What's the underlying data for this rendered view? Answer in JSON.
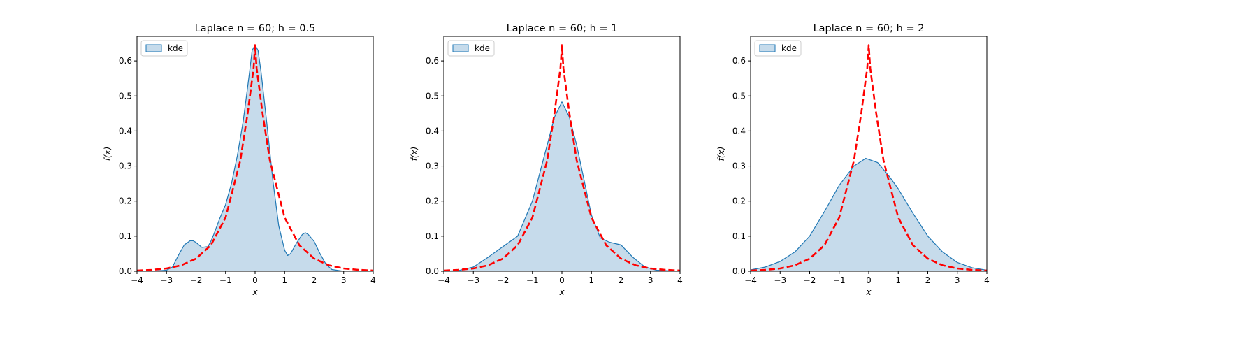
{
  "chart_data": [
    {
      "type": "area",
      "title": "Laplace n = 60; h = 0.5",
      "xlabel": "x",
      "ylabel": "f(x)",
      "xlim": [
        -4,
        4
      ],
      "ylim": [
        0,
        0.67
      ],
      "xticks": [
        -4,
        -3,
        -2,
        -1,
        0,
        1,
        2,
        3,
        4
      ],
      "yticks": [
        0.0,
        0.1,
        0.2,
        0.3,
        0.4,
        0.5,
        0.6
      ],
      "legend": {
        "position": "top-left",
        "entries": [
          "kde"
        ]
      },
      "grid": false,
      "series": [
        {
          "name": "kde",
          "style": "filled",
          "x": [
            -4,
            -3.5,
            -3,
            -2.8,
            -2.6,
            -2.4,
            -2.2,
            -2.1,
            -2.0,
            -1.8,
            -1.6,
            -1.5,
            -1.4,
            -1.2,
            -1.0,
            -0.8,
            -0.6,
            -0.4,
            -0.2,
            -0.1,
            0.0,
            0.1,
            0.2,
            0.4,
            0.6,
            0.8,
            1.0,
            1.1,
            1.2,
            1.4,
            1.6,
            1.7,
            1.8,
            2.0,
            2.2,
            2.4,
            2.6,
            3.0,
            4.0
          ],
          "y": [
            0.0,
            0.0,
            0.003,
            0.012,
            0.045,
            0.075,
            0.087,
            0.087,
            0.082,
            0.068,
            0.07,
            0.085,
            0.105,
            0.15,
            0.19,
            0.25,
            0.33,
            0.43,
            0.56,
            0.63,
            0.645,
            0.63,
            0.57,
            0.42,
            0.26,
            0.13,
            0.06,
            0.045,
            0.05,
            0.08,
            0.105,
            0.11,
            0.105,
            0.085,
            0.05,
            0.02,
            0.005,
            0.0,
            0.0
          ]
        },
        {
          "name": "",
          "style": "dashed",
          "x": [
            -4,
            -3.5,
            -3,
            -2.5,
            -2,
            -1.5,
            -1,
            -0.5,
            -0.25,
            -0.05,
            0,
            0.05,
            0.25,
            0.5,
            1,
            1.5,
            2,
            2.5,
            3,
            3.5,
            4
          ],
          "y": [
            0.002,
            0.004,
            0.008,
            0.017,
            0.036,
            0.074,
            0.153,
            0.316,
            0.452,
            0.58,
            0.645,
            0.58,
            0.452,
            0.316,
            0.153,
            0.074,
            0.036,
            0.017,
            0.008,
            0.004,
            0.002
          ]
        }
      ]
    },
    {
      "type": "area",
      "title": "Laplace n = 60; h = 1",
      "xlabel": "x",
      "ylabel": "f(x)",
      "xlim": [
        -4,
        4
      ],
      "ylim": [
        0,
        0.67
      ],
      "xticks": [
        -4,
        -3,
        -2,
        -1,
        0,
        1,
        2,
        3,
        4
      ],
      "yticks": [
        0.0,
        0.1,
        0.2,
        0.3,
        0.4,
        0.5,
        0.6
      ],
      "legend": {
        "position": "top-left",
        "entries": [
          "kde"
        ]
      },
      "grid": false,
      "series": [
        {
          "name": "kde",
          "style": "filled",
          "x": [
            -4,
            -3.5,
            -3,
            -2.5,
            -2,
            -1.5,
            -1,
            -0.5,
            -0.25,
            0,
            0.25,
            0.5,
            1,
            1.3,
            1.6,
            2,
            2.4,
            2.8,
            3.2,
            4
          ],
          "y": [
            0.0,
            0.002,
            0.012,
            0.04,
            0.07,
            0.1,
            0.2,
            0.36,
            0.44,
            0.483,
            0.44,
            0.36,
            0.16,
            0.095,
            0.083,
            0.075,
            0.04,
            0.013,
            0.003,
            0.0
          ]
        },
        {
          "name": "",
          "style": "dashed",
          "x": [
            -4,
            -3.5,
            -3,
            -2.5,
            -2,
            -1.5,
            -1,
            -0.5,
            -0.25,
            -0.05,
            0,
            0.05,
            0.25,
            0.5,
            1,
            1.5,
            2,
            2.5,
            3,
            3.5,
            4
          ],
          "y": [
            0.002,
            0.004,
            0.008,
            0.017,
            0.036,
            0.074,
            0.153,
            0.316,
            0.452,
            0.58,
            0.645,
            0.58,
            0.452,
            0.316,
            0.153,
            0.074,
            0.036,
            0.017,
            0.008,
            0.004,
            0.002
          ]
        }
      ]
    },
    {
      "type": "area",
      "title": "Laplace n = 60; h = 2",
      "xlabel": "x",
      "ylabel": "f(x)",
      "xlim": [
        -4,
        4
      ],
      "ylim": [
        0,
        0.67
      ],
      "xticks": [
        -4,
        -3,
        -2,
        -1,
        0,
        1,
        2,
        3,
        4
      ],
      "yticks": [
        0.0,
        0.1,
        0.2,
        0.3,
        0.4,
        0.5,
        0.6
      ],
      "legend": {
        "position": "top-left",
        "entries": [
          "kde"
        ]
      },
      "grid": false,
      "series": [
        {
          "name": "kde",
          "style": "filled",
          "x": [
            -4,
            -3.5,
            -3,
            -2.5,
            -2,
            -1.5,
            -1,
            -0.5,
            -0.1,
            0.3,
            0.7,
            1,
            1.5,
            2,
            2.5,
            3,
            3.5,
            4
          ],
          "y": [
            0.004,
            0.012,
            0.028,
            0.055,
            0.1,
            0.17,
            0.245,
            0.3,
            0.322,
            0.31,
            0.27,
            0.235,
            0.165,
            0.1,
            0.055,
            0.025,
            0.01,
            0.003
          ]
        },
        {
          "name": "",
          "style": "dashed",
          "x": [
            -4,
            -3.5,
            -3,
            -2.5,
            -2,
            -1.5,
            -1,
            -0.5,
            -0.25,
            -0.05,
            0,
            0.05,
            0.25,
            0.5,
            1,
            1.5,
            2,
            2.5,
            3,
            3.5,
            4
          ],
          "y": [
            0.002,
            0.004,
            0.008,
            0.017,
            0.036,
            0.074,
            0.153,
            0.316,
            0.452,
            0.58,
            0.645,
            0.58,
            0.452,
            0.316,
            0.153,
            0.074,
            0.036,
            0.017,
            0.008,
            0.004,
            0.002
          ]
        }
      ]
    }
  ],
  "colors": {
    "kde_line": "#1f77b4",
    "kde_fill": "#c6dbeb",
    "reference_line": "#ff0000"
  }
}
